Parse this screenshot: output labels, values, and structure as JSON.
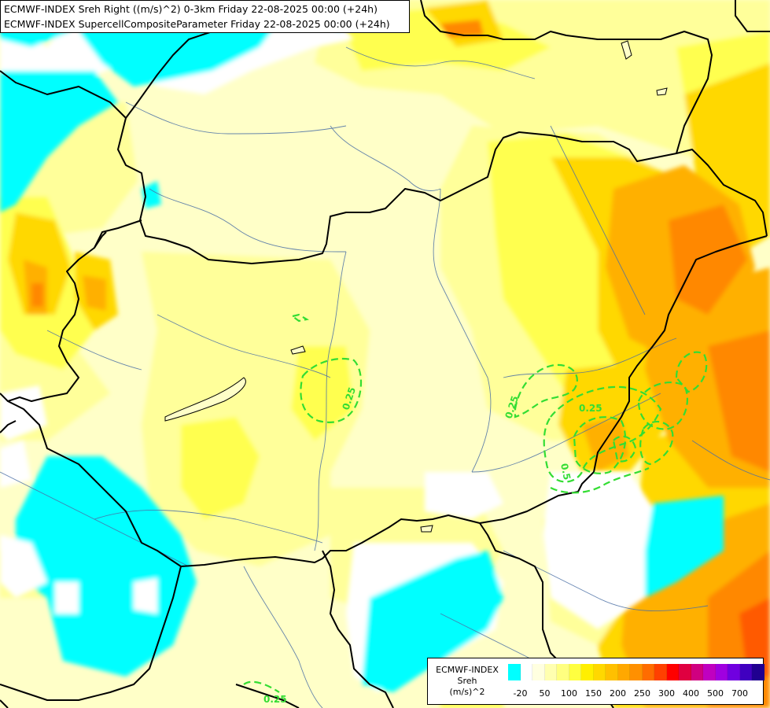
{
  "title": {
    "line1": "ECMWF-INDEX Sreh Right ((m/s)^2) 0-3km Friday 22-08-2025 00:00 (+24h)",
    "line2": "ECMWF-INDEX SupercellCompositeParameter Friday 22-08-2025 00:00 (+24h)"
  },
  "contour_labels": [
    "0.25",
    "0.25",
    "0.25",
    "0.5",
    "0.25"
  ],
  "legend": {
    "source": "ECMWF-INDEX",
    "parameter": "Sreh",
    "unit": "(m/s)^2",
    "colors": [
      "#00ffff",
      "#ffffff",
      "#ffffe0",
      "#ffffb0",
      "#ffff80",
      "#ffff40",
      "#ffef00",
      "#ffd800",
      "#ffc000",
      "#ffa800",
      "#ff9000",
      "#ff6c00",
      "#ff4000",
      "#ff0000",
      "#e00040",
      "#d00080",
      "#c000c0",
      "#a000e0",
      "#7000e0",
      "#4000c0",
      "#200090"
    ],
    "ticks": [
      {
        "v": "-20",
        "i": 1
      },
      {
        "v": "50",
        "i": 3
      },
      {
        "v": "100",
        "i": 5
      },
      {
        "v": "150",
        "i": 7
      },
      {
        "v": "200",
        "i": 9
      },
      {
        "v": "250",
        "i": 11
      },
      {
        "v": "300",
        "i": 13
      },
      {
        "v": "400",
        "i": 15
      },
      {
        "v": "500",
        "i": 17
      },
      {
        "v": "700",
        "i": 19
      }
    ]
  },
  "colors": {
    "cyan": "#00ffff",
    "white": "#ffffff",
    "pale": "#ffffc8",
    "light": "#ffff9a",
    "yellow": "#ffff50",
    "gold": "#ffd800",
    "orange": "#ffb000",
    "deep_orange": "#ff8800",
    "red_orange": "#ff5a00",
    "contour": "#33dd33",
    "border": "#000000",
    "river": "#4a6fa5"
  }
}
